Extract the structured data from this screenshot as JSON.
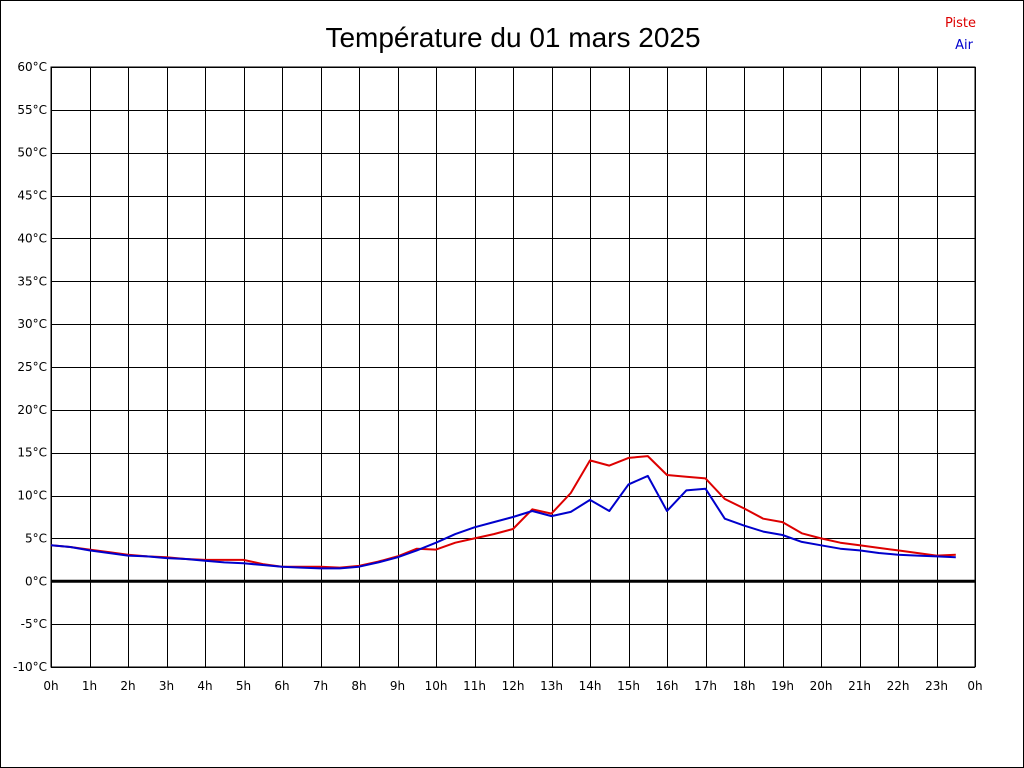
{
  "chart_data": {
    "type": "line",
    "title": "Température du 01 mars 2025",
    "xlabel": "",
    "ylabel": "",
    "x_unit": "hour",
    "xlim": [
      0,
      24
    ],
    "ylim": [
      -10,
      60
    ],
    "grid": true,
    "legend_position": "top-right",
    "x_tick_labels": [
      "0h",
      "1h",
      "2h",
      "3h",
      "4h",
      "5h",
      "6h",
      "7h",
      "8h",
      "9h",
      "10h",
      "11h",
      "12h",
      "13h",
      "14h",
      "15h",
      "16h",
      "17h",
      "18h",
      "19h",
      "20h",
      "21h",
      "22h",
      "23h",
      "0h"
    ],
    "y_tick_labels": [
      "-10°C",
      "-5°C",
      "0°C",
      "5°C",
      "10°C",
      "15°C",
      "20°C",
      "25°C",
      "30°C",
      "35°C",
      "40°C",
      "45°C",
      "50°C",
      "55°C",
      "60°C"
    ],
    "x": [
      0,
      0.5,
      1,
      1.5,
      2,
      2.5,
      3,
      3.5,
      4,
      4.5,
      5,
      5.5,
      6,
      6.5,
      7,
      7.5,
      8,
      8.5,
      9,
      9.5,
      10,
      10.5,
      11,
      11.5,
      12,
      12.5,
      13,
      13.5,
      14,
      14.5,
      15,
      15.5,
      16,
      16.5,
      17,
      17.5,
      18,
      18.5,
      19,
      19.5,
      20,
      20.5,
      21,
      21.5,
      22,
      22.5,
      23,
      23.5
    ],
    "series": [
      {
        "name": "Piste",
        "color": "#dd0000",
        "values": [
          4.2,
          4.0,
          3.7,
          3.4,
          3.1,
          2.9,
          2.8,
          2.6,
          2.5,
          2.5,
          2.5,
          2.0,
          1.7,
          1.7,
          1.7,
          1.6,
          1.8,
          2.3,
          2.9,
          3.8,
          3.7,
          4.5,
          5.0,
          5.5,
          6.1,
          8.4,
          7.9,
          10.3,
          14.1,
          13.5,
          14.4,
          14.6,
          12.4,
          12.2,
          12.0,
          9.6,
          8.5,
          7.3,
          6.9,
          5.6,
          5.0,
          4.5,
          4.2,
          3.9,
          3.6,
          3.3,
          3.0,
          3.1
        ]
      },
      {
        "name": "Air",
        "color": "#0000cc",
        "values": [
          4.2,
          4.0,
          3.6,
          3.3,
          3.0,
          2.9,
          2.7,
          2.6,
          2.4,
          2.2,
          2.1,
          1.9,
          1.7,
          1.6,
          1.5,
          1.5,
          1.7,
          2.2,
          2.8,
          3.6,
          4.5,
          5.5,
          6.3,
          6.9,
          7.5,
          8.2,
          7.6,
          8.1,
          9.5,
          8.2,
          11.3,
          12.3,
          8.2,
          10.6,
          10.8,
          7.3,
          6.5,
          5.8,
          5.4,
          4.6,
          4.2,
          3.8,
          3.6,
          3.3,
          3.1,
          3.0,
          2.9,
          2.8
        ]
      }
    ]
  }
}
